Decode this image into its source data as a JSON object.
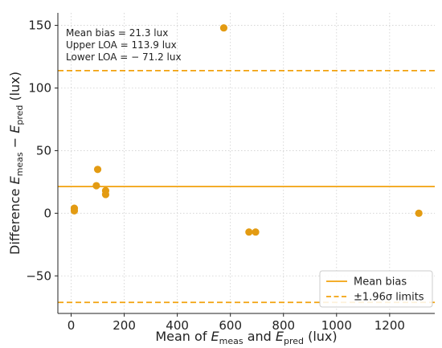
{
  "chart_data": {
    "type": "scatter",
    "title": "",
    "xlabel": "Mean of E_meas and E_pred (lux)",
    "xlabel_parts": {
      "prefix": "Mean of ",
      "e1": "E",
      "sub1": "meas",
      "mid": " and ",
      "e2": "E",
      "sub2": "pred",
      "suffix": " (lux)"
    },
    "ylabel": "Difference E_meas − E_pred (lux)",
    "ylabel_parts": {
      "prefix": "Difference ",
      "e1": "E",
      "sub1": "meas",
      "mid": " − ",
      "e2": "E",
      "sub2": "pred",
      "suffix": " (lux)"
    },
    "xlim": [
      -50,
      1370
    ],
    "ylim": [
      -80,
      160
    ],
    "xticks": [
      0,
      200,
      400,
      600,
      800,
      1000,
      1200
    ],
    "yticks": [
      -50,
      0,
      50,
      100,
      150
    ],
    "ytick_labels": [
      "−50",
      "0",
      "50",
      "100",
      "150"
    ],
    "grid": true,
    "points": [
      {
        "x": 12,
        "y": 4
      },
      {
        "x": 12,
        "y": 2
      },
      {
        "x": 95,
        "y": 22
      },
      {
        "x": 100,
        "y": 35
      },
      {
        "x": 130,
        "y": 18
      },
      {
        "x": 130,
        "y": 15
      },
      {
        "x": 575,
        "y": 148
      },
      {
        "x": 670,
        "y": -15
      },
      {
        "x": 695,
        "y": -15
      },
      {
        "x": 1310,
        "y": 0
      }
    ],
    "mean_bias": 21.3,
    "upper_loa": 113.9,
    "lower_loa": -71.2,
    "annotations": [
      "Mean bias  = 21.3 lux",
      "Upper LOA  = 113.9 lux",
      "Lower LOA  = − 71.2 lux"
    ],
    "legend": {
      "placement": "lower-right",
      "entries": [
        {
          "label": "Mean bias",
          "style": "solid"
        },
        {
          "label": "±1.96σ limits",
          "style": "dashed"
        }
      ]
    },
    "colors": {
      "points": "#E39B12",
      "lines": "#F2A20E",
      "grid": "#cfcfcf"
    }
  }
}
